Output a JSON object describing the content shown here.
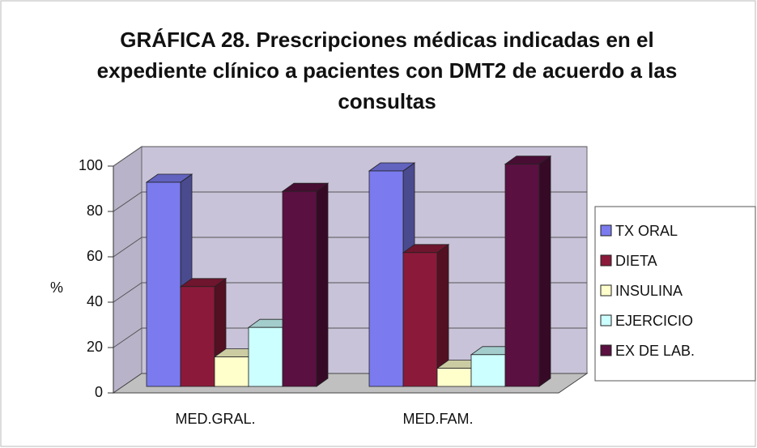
{
  "chart_data": {
    "type": "bar3d",
    "title": "GRÁFICA 28. Prescripciones médicas indicadas en el expediente clínico a pacientes con DMT2 de acuerdo a las consultas",
    "y_label": "%",
    "categories": [
      "MED.GRAL.",
      "MED.FAM."
    ],
    "series": [
      {
        "name": "TX ORAL",
        "color": "#7b7bef",
        "values": [
          90,
          95
        ]
      },
      {
        "name": "DIETA",
        "color": "#8b1a3a",
        "values": [
          44,
          59
        ]
      },
      {
        "name": "INSULINA",
        "color": "#ffffcc",
        "values": [
          13,
          8
        ]
      },
      {
        "name": "EJERCICIO",
        "color": "#ccffff",
        "values": [
          26,
          14
        ]
      },
      {
        "name": "EX DE LAB.",
        "color": "#5a1040",
        "values": [
          86,
          98
        ]
      }
    ],
    "ylim": [
      0,
      100
    ],
    "yticks": [
      0,
      20,
      40,
      60,
      80,
      100
    ],
    "grid": true,
    "legend": "right"
  }
}
